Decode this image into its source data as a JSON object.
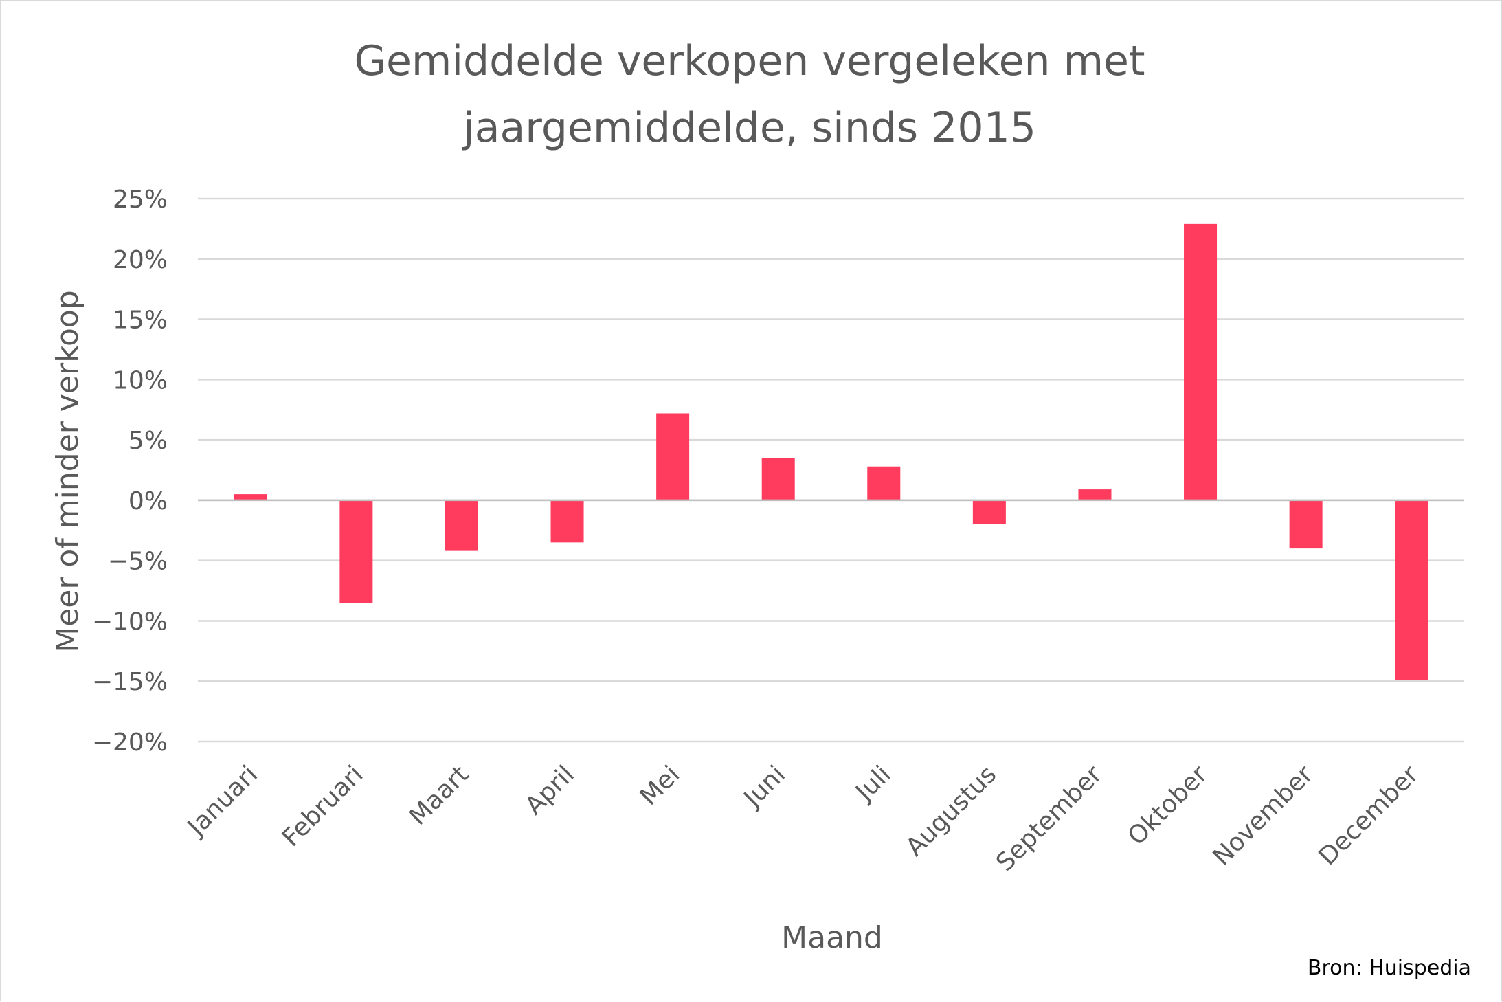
{
  "chart_data": {
    "type": "bar",
    "title_lines": [
      "Gemiddelde verkopen vergeleken met",
      "jaargemiddelde, sinds 2015"
    ],
    "xlabel": "Maand",
    "ylabel": "Meer of minder verkoop",
    "categories": [
      "Januari",
      "Februari",
      "Maart",
      "April",
      "Mei",
      "Juni",
      "Juli",
      "Augustus",
      "September",
      "Oktober",
      "November",
      "December"
    ],
    "values": [
      0.5,
      -8.5,
      -4.2,
      -3.5,
      7.2,
      3.5,
      2.8,
      -2.0,
      0.9,
      22.9,
      -4.0,
      -14.9
    ],
    "ylim": [
      -20,
      25
    ],
    "ytick_step": 5,
    "yticks": [
      "25%",
      "20%",
      "15%",
      "10%",
      "5%",
      "0%",
      "−5%",
      "−10%",
      "−15%",
      "−20%"
    ],
    "bar_color": "#ff3b5e",
    "grid": true,
    "legend": "none"
  },
  "source": "Bron: Huispedia"
}
